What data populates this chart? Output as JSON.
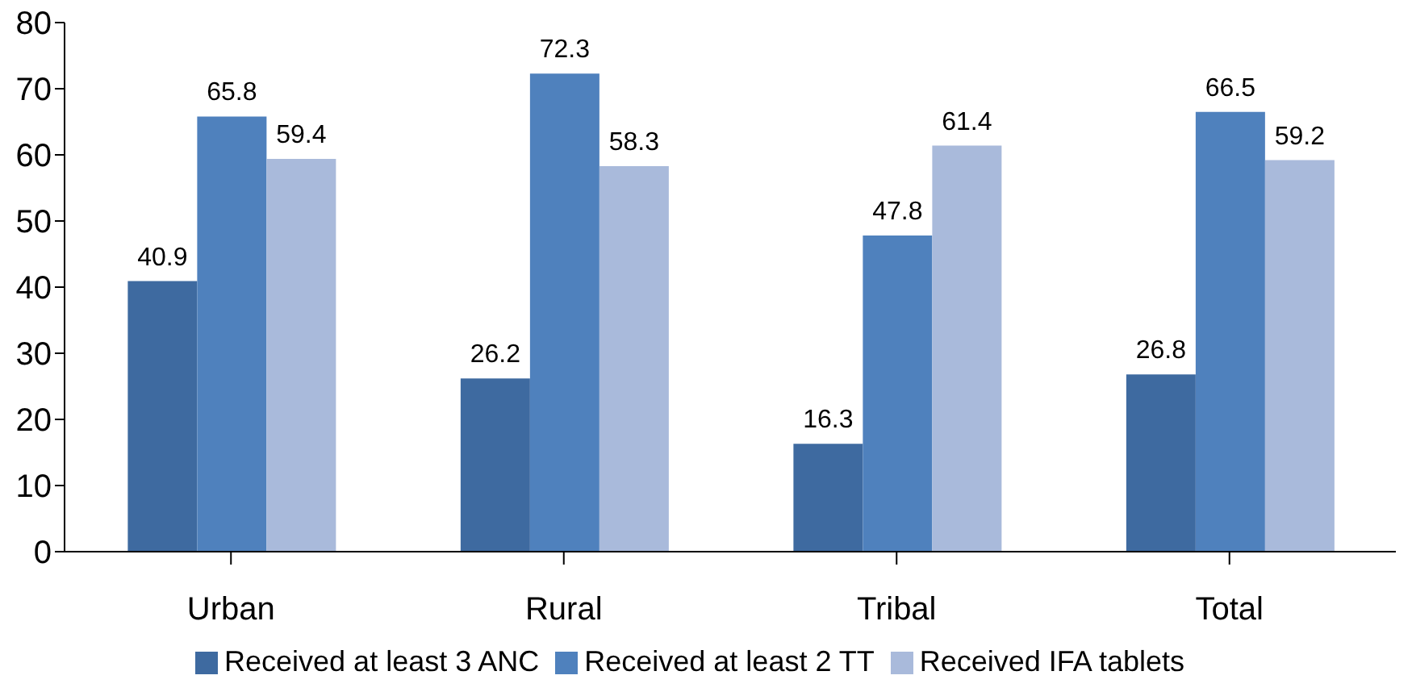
{
  "chart_data": {
    "type": "bar",
    "categories": [
      "Urban",
      "Rural",
      "Tribal",
      "Total"
    ],
    "series": [
      {
        "name": "Received at least 3 ANC",
        "color": "#3e6aa0",
        "values": [
          40.9,
          26.2,
          16.3,
          26.8
        ]
      },
      {
        "name": "Received at least 2 TT",
        "color": "#4f81bd",
        "values": [
          65.8,
          72.3,
          47.8,
          66.5
        ]
      },
      {
        "name": "Received IFA tablets",
        "color": "#a9badb",
        "values": [
          59.4,
          58.3,
          61.4,
          59.2
        ]
      }
    ],
    "ylim": [
      0,
      80
    ],
    "yticks": [
      0,
      10,
      20,
      30,
      40,
      50,
      60,
      70,
      80
    ],
    "grid": false,
    "legend": "bottom",
    "data_labels": true
  }
}
